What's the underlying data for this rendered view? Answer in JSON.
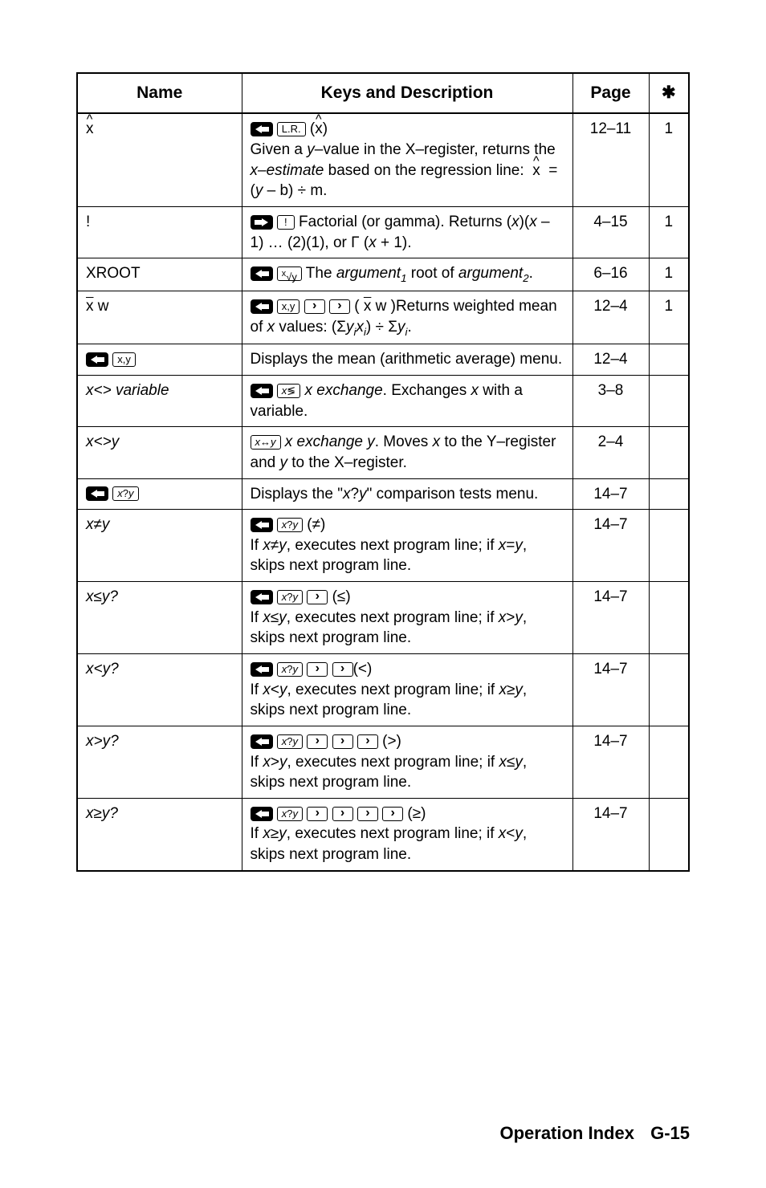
{
  "headers": {
    "name": "Name",
    "desc": "Keys and Description",
    "page": "Page",
    "star": "✱"
  },
  "rows": [
    {
      "name_html": "<span class='hat nameplain'>x</span>",
      "desc_html": "<span class='keyshift left' data-name='shift-left-icon' data-interactable='false'></span> <span class='keycap-outline' data-name='lr-key' data-interactable='false'>L.R.</span> (<span class='hat'>x</span>)<br>Given a <span class='ital'>y</span>–value in the X–register, returns the <span class='ital'>x–estimate</span> based on the regression line: &nbsp;<span class='hat'>x</span>&nbsp; = (<span class='ital'>y</span> – b) ÷ m.",
      "page": "12–11",
      "star": "1"
    },
    {
      "name_html": "<span class='nameplain'>!</span>",
      "desc_html": "<span class='keyshift right' data-name='shift-right-icon' data-interactable='false'></span> <span class='keycap-outline' data-name='factorial-key' data-interactable='false'>!</span> Factorial (or gamma). Returns (<span class='ital'>x</span>)(<span class='ital'>x</span> – 1) … (2)(1), or Γ (<span class='ital'>x</span> + 1).",
      "page": "4–15",
      "star": "1"
    },
    {
      "name_html": "<span class='nameplain'>XROOT</span>",
      "desc_html": "<span class='keyshift left' data-name='shift-left-icon' data-interactable='false'></span> <span class='keycap-outline' data-name='xroot-key' data-interactable='false'><sup>x</sup>√y</span> The <span class='ital'>argument</span><span class='sub'>1</span> root of <span class='ital'>argument</span><span class='sub'>2</span>.",
      "page": "6–16",
      "star": "1"
    },
    {
      "name_html": "<span class='nameplain'><span class='xbar'>x</span> w</span>",
      "desc_html": "<span class='keyshift left' data-name='shift-left-icon' data-interactable='false'></span> <span class='keycap-outline' data-name='mean-key' data-interactable='false'><span class='xbar'>x</span>,<span class='xbar'>y</span></span> <span class='keycap-arrow' data-name='arrow-key' data-interactable='false'></span> <span class='keycap-arrow' data-name='arrow-key' data-interactable='false'></span> ( <span class='xbar'>x</span> w )Returns weighted mean of <span class='ital'>x</span> values: (Σ<span class='ital'>y<span class='sub'>i</span>x<span class='sub'>i</span></span>) ÷ Σ<span class='ital'>y<span class='sub'>i</span></span>.",
      "page": "12–4",
      "star": "1"
    },
    {
      "name_html": "<span class='keyshift left' data-name='shift-left-icon' data-interactable='false'></span> <span class='keycap-outline' data-name='mean-key' data-interactable='false'><span class='xbar'>x</span>,<span class='xbar'>y</span></span>",
      "desc_html": "Displays the mean (arithmetic average) menu.",
      "page": "12–4",
      "star": ""
    },
    {
      "name_html": "x&lt;&gt; variable",
      "desc_html": "<span class='keyshift left' data-name='shift-left-icon' data-interactable='false'></span> <span class='keycap-outline' data-name='xexch-key' data-interactable='false'><span class='ital'>x</span>≶</span> <span class='ital'>x exchange</span>. Exchanges <span class='ital'>x</span> with a variable.",
      "page": "3–8",
      "star": ""
    },
    {
      "name_html": "x&lt;&gt;y",
      "desc_html": "<span class='keycap-outline' data-name='xexchy-key' data-interactable='false'><span class='ital'>x</span>↔<span class='ital'>y</span></span> <span class='ital'>x exchange y</span>. Moves <span class='ital'>x</span> to the Y–register and <span class='ital'>y</span> to the X–register.",
      "page": "2–4",
      "star": ""
    },
    {
      "name_html": "<span class='keyshift left' data-name='shift-left-icon' data-interactable='false'></span> <span class='keycap-outline' data-name='xcompy-key' data-interactable='false'><span class='ital'>x</span>?<span class='ital'>y</span></span>",
      "desc_html": "Displays the &quot;<span class='ital'>x</span>?<span class='ital'>y</span>&quot; comparison tests menu.",
      "page": "14–7",
      "star": ""
    },
    {
      "name_html": "x≠y",
      "desc_html": "<span class='keyshift left' data-name='shift-left-icon' data-interactable='false'></span> <span class='keycap-outline' data-name='xcompy-key' data-interactable='false'><span class='ital'>x</span>?<span class='ital'>y</span></span> (≠)<br>If <span class='ital'>x</span>≠<span class='ital'>y</span>, executes next program line; if <span class='ital'>x</span>=<span class='ital'>y</span>, skips next program line.",
      "page": "14–7",
      "star": ""
    },
    {
      "name_html": "x≤y?",
      "desc_html": "<span class='keyshift left' data-name='shift-left-icon' data-interactable='false'></span> <span class='keycap-outline' data-name='xcompy-key' data-interactable='false'><span class='ital'>x</span>?<span class='ital'>y</span></span> <span class='keycap-arrow' data-name='arrow-key' data-interactable='false'></span> (≤)<br>If <span class='ital'>x</span>≤<span class='ital'>y</span>, executes next program line; if <span class='ital'>x</span>&gt;<span class='ital'>y</span>, skips next program line.",
      "page": "14–7",
      "star": ""
    },
    {
      "name_html": "x&lt;y?",
      "desc_html": "<span class='keyshift left' data-name='shift-left-icon' data-interactable='false'></span> <span class='keycap-outline' data-name='xcompy-key' data-interactable='false'><span class='ital'>x</span>?<span class='ital'>y</span></span> <span class='keycap-arrow' data-name='arrow-key' data-interactable='false'></span> <span class='keycap-arrow' data-name='arrow-key' data-interactable='false'></span>(&lt;)<br>If <span class='ital'>x</span>&lt;<span class='ital'>y</span>, executes next program line; if <span class='ital'>x</span>≥<span class='ital'>y</span>, skips next program line.",
      "page": "14–7",
      "star": ""
    },
    {
      "name_html": "x&gt;y?",
      "desc_html": "<span class='keyshift left' data-name='shift-left-icon' data-interactable='false'></span> <span class='keycap-outline' data-name='xcompy-key' data-interactable='false'><span class='ital'>x</span>?<span class='ital'>y</span></span> <span class='keycap-arrow' data-name='arrow-key' data-interactable='false'></span> <span class='keycap-arrow' data-name='arrow-key' data-interactable='false'></span> <span class='keycap-arrow' data-name='arrow-key' data-interactable='false'></span> (&gt;)<br>If <span class='ital'>x</span>&gt;<span class='ital'>y</span>, executes next program line; if <span class='ital'>x</span>≤<span class='ital'>y</span>, skips next program line.",
      "page": "14–7",
      "star": ""
    },
    {
      "name_html": "x≥y?",
      "desc_html": "<span class='keyshift left' data-name='shift-left-icon' data-interactable='false'></span> <span class='keycap-outline' data-name='xcompy-key' data-interactable='false'><span class='ital'>x</span>?<span class='ital'>y</span></span> <span class='keycap-arrow' data-name='arrow-key' data-interactable='false'></span> <span class='keycap-arrow' data-name='arrow-key' data-interactable='false'></span> <span class='keycap-arrow' data-name='arrow-key' data-interactable='false'></span> <span class='keycap-arrow' data-name='arrow-key' data-interactable='false'></span> (≥)<br>If <span class='ital'>x</span>≥<span class='ital'>y</span>, executes next program line; if <span class='ital'>x</span>&lt;<span class='ital'>y</span>, skips next program line.",
      "page": "14–7",
      "star": ""
    }
  ],
  "footer": {
    "title": "Operation Index",
    "page": "G-15"
  }
}
